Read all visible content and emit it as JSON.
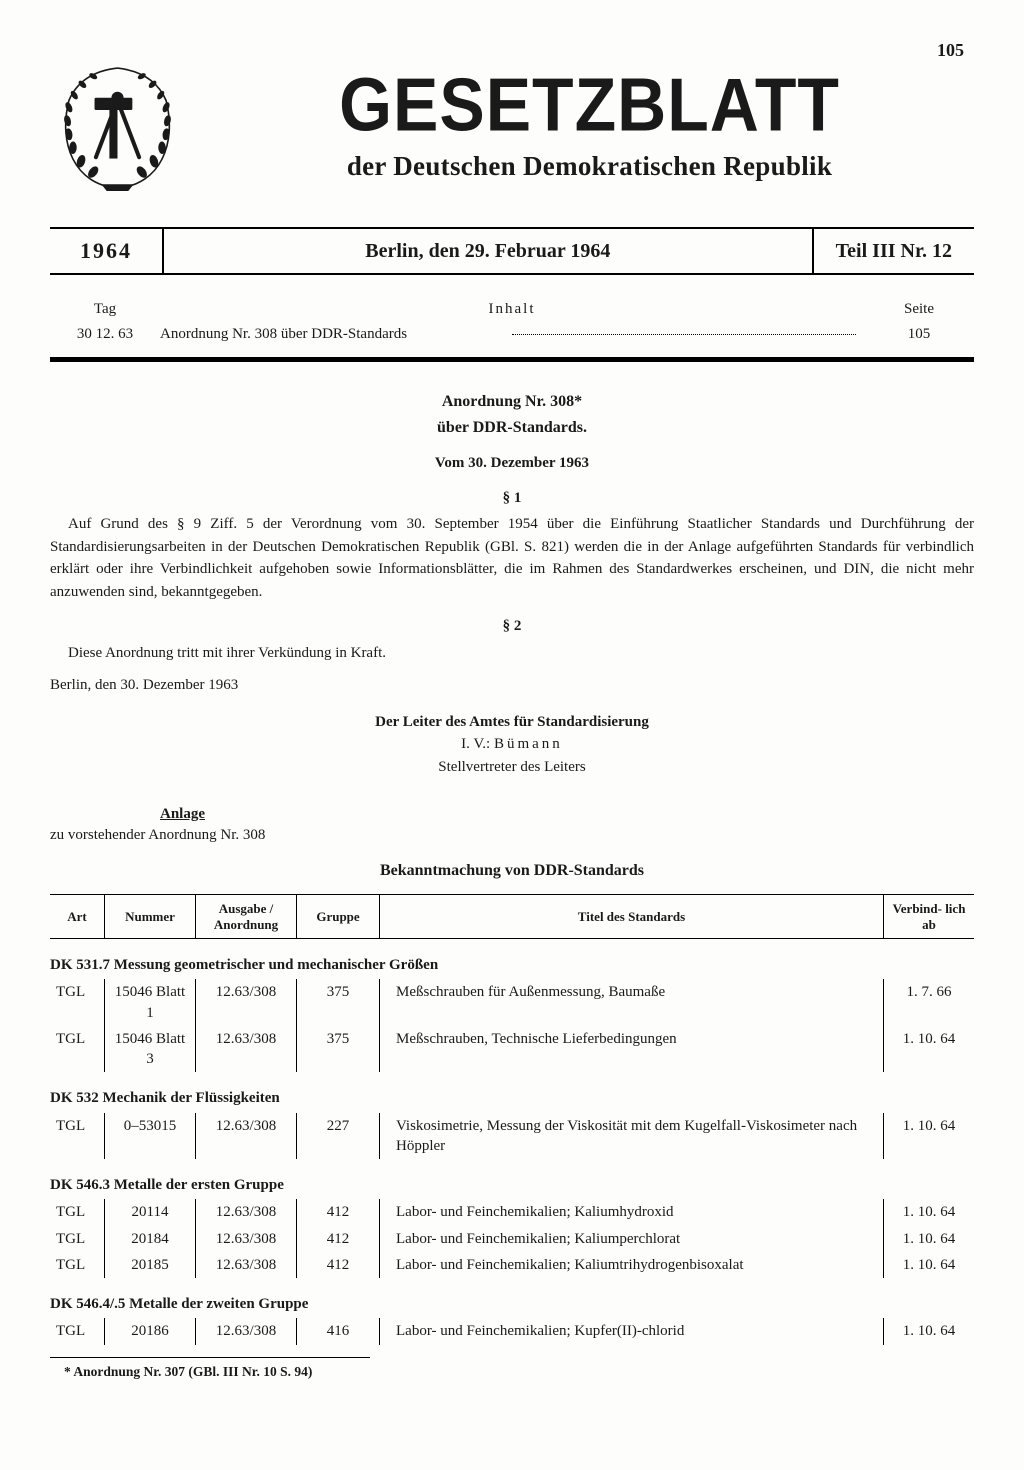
{
  "page_number": "105",
  "masthead": {
    "title": "GESETZBLATT",
    "subtitle": "der Deutschen Demokratischen Republik"
  },
  "issue": {
    "year": "1964",
    "place_date": "Berlin, den 29. Februar 1964",
    "part": "Teil III  Nr. 12"
  },
  "toc": {
    "col_tag": "Tag",
    "col_inhalt": "Inhalt",
    "col_seite": "Seite",
    "row": {
      "tag": "30  12. 63",
      "title": "Anordnung Nr. 308 über DDR-Standards",
      "seite": "105"
    }
  },
  "ordinance": {
    "title_line1": "Anordnung Nr. 308*",
    "title_line2": "über DDR-Standards.",
    "date": "Vom 30. Dezember 1963",
    "section1": "§ 1",
    "para1": "Auf Grund des § 9 Ziff. 5 der Verordnung vom 30. September 1954 über die Einführung Staatlicher Standards und Durchführung der Standardisierungsarbeiten in der Deutschen Demokratischen Republik (GBl. S. 821) werden die in der Anlage aufgeführten Standards für verbindlich erklärt oder ihre Verbindlichkeit aufgehoben sowie Informationsblätter, die im Rahmen des Standardwerkes erscheinen, und DIN, die nicht mehr anzuwenden sind, bekanntgegeben.",
    "section2": "§ 2",
    "para2": "Diese Anordnung tritt mit ihrer Verkündung in Kraft.",
    "place_sign": "Berlin, den 30. Dezember 1963",
    "sig_line1": "Der Leiter des Amtes für Standardisierung",
    "sig_line2a": "I.  V.: ",
    "sig_line2b": "Bümann",
    "sig_line3": "Stellvertreter des Leiters"
  },
  "anlage": {
    "label": "Anlage",
    "sub": "zu vorstehender Anordnung Nr. 308",
    "heading": "Bekanntmachung von DDR-Standards"
  },
  "table": {
    "columns": {
      "art": "Art",
      "nummer": "Nummer",
      "ausgabe": "Ausgabe / Anordnung",
      "gruppe": "Gruppe",
      "titel": "Titel des Standards",
      "verbind": "Verbind- lich ab"
    },
    "sections": [
      {
        "heading": "DK 531.7 Messung geometrischer und mechanischer Größen",
        "rows": [
          {
            "art": "TGL",
            "nummer": "15046 Blatt 1",
            "ausgabe": "12.63/308",
            "gruppe": "375",
            "titel": "Meßschrauben für Außenmessung, Baumaße",
            "verbind": "1.  7. 66"
          },
          {
            "art": "TGL",
            "nummer": "15046 Blatt 3",
            "ausgabe": "12.63/308",
            "gruppe": "375",
            "titel": "Meßschrauben, Technische Lieferbedingungen",
            "verbind": "1. 10. 64"
          }
        ]
      },
      {
        "heading": "DK 532 Mechanik der Flüssigkeiten",
        "rows": [
          {
            "art": "TGL",
            "nummer": "0–53015",
            "ausgabe": "12.63/308",
            "gruppe": "227",
            "titel": "Viskosimetrie, Messung der Viskosität mit dem Kugelfall-Viskosimeter nach Höppler",
            "verbind": "1. 10. 64"
          }
        ]
      },
      {
        "heading": "DK 546.3 Metalle der ersten Gruppe",
        "rows": [
          {
            "art": "TGL",
            "nummer": "20114",
            "ausgabe": "12.63/308",
            "gruppe": "412",
            "titel": "Labor- und Feinchemikalien; Kaliumhydroxid",
            "verbind": "1. 10. 64"
          },
          {
            "art": "TGL",
            "nummer": "20184",
            "ausgabe": "12.63/308",
            "gruppe": "412",
            "titel": "Labor- und Feinchemikalien; Kaliumperchlorat",
            "verbind": "1. 10. 64"
          },
          {
            "art": "TGL",
            "nummer": "20185",
            "ausgabe": "12.63/308",
            "gruppe": "412",
            "titel": "Labor- und Feinchemikalien; Kaliumtrihydrogenbisoxalat",
            "verbind": "1. 10. 64"
          }
        ]
      },
      {
        "heading": "DK 546.4/.5 Metalle der zweiten Gruppe",
        "rows": [
          {
            "art": "TGL",
            "nummer": "20186",
            "ausgabe": "12.63/308",
            "gruppe": "416",
            "titel": "Labor- und Feinchemikalien; Kupfer(II)-chlorid",
            "verbind": "1. 10. 64"
          }
        ]
      }
    ]
  },
  "footnote": "* Anordnung Nr. 307 (GBl. III Nr. 10 S. 94)"
}
